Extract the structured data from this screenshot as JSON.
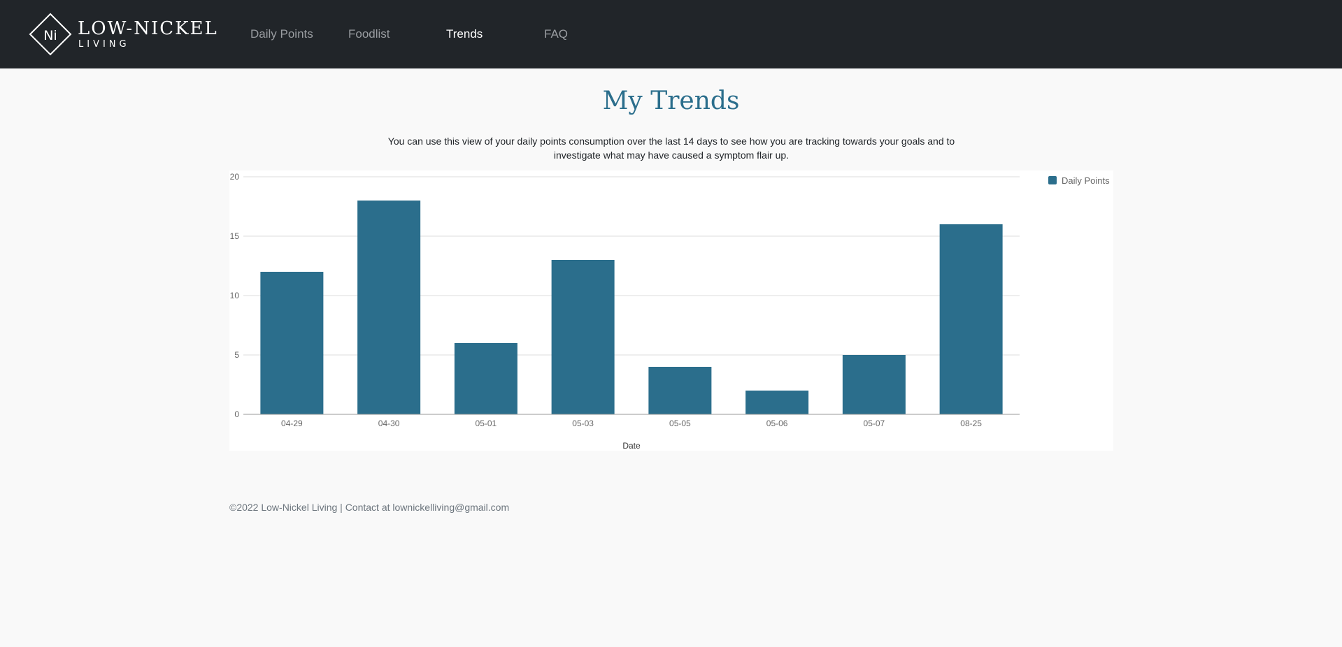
{
  "brand": {
    "line1": "LOW-NICKEL",
    "line2": "LIVING",
    "mark_text": "Ni"
  },
  "nav": {
    "items": [
      {
        "label": "Daily Points",
        "active": false
      },
      {
        "label": "Foodlist",
        "active": false
      },
      {
        "label": "Trends",
        "active": true
      },
      {
        "label": "FAQ",
        "active": false
      }
    ]
  },
  "main": {
    "title": "My Trends",
    "intro": "You can use this view of your daily points consumption over the last 14 days to see how you are tracking towards your goals and to investigate what may have caused a symptom flair up."
  },
  "chart_data": {
    "type": "bar",
    "categories": [
      "04-29",
      "04-30",
      "05-01",
      "05-03",
      "05-05",
      "05-06",
      "05-07",
      "08-25"
    ],
    "series": [
      {
        "name": "Daily Points",
        "values": [
          12,
          18,
          6,
          13,
          4,
          2,
          5,
          16
        ]
      }
    ],
    "xlabel": "Date",
    "ylabel": "",
    "ylim": [
      0,
      20
    ],
    "yticks": [
      0,
      5,
      10,
      15,
      20
    ],
    "grid": true,
    "legend": "top-right",
    "bar_color": "#2b6e8c"
  },
  "footer": {
    "text": "©2022 Low-Nickel Living | Contact at lownickelliving@gmail.com"
  },
  "colors": {
    "navbar_bg": "#212529",
    "accent": "#2b6e8c",
    "page_bg": "#f9f9f9"
  }
}
